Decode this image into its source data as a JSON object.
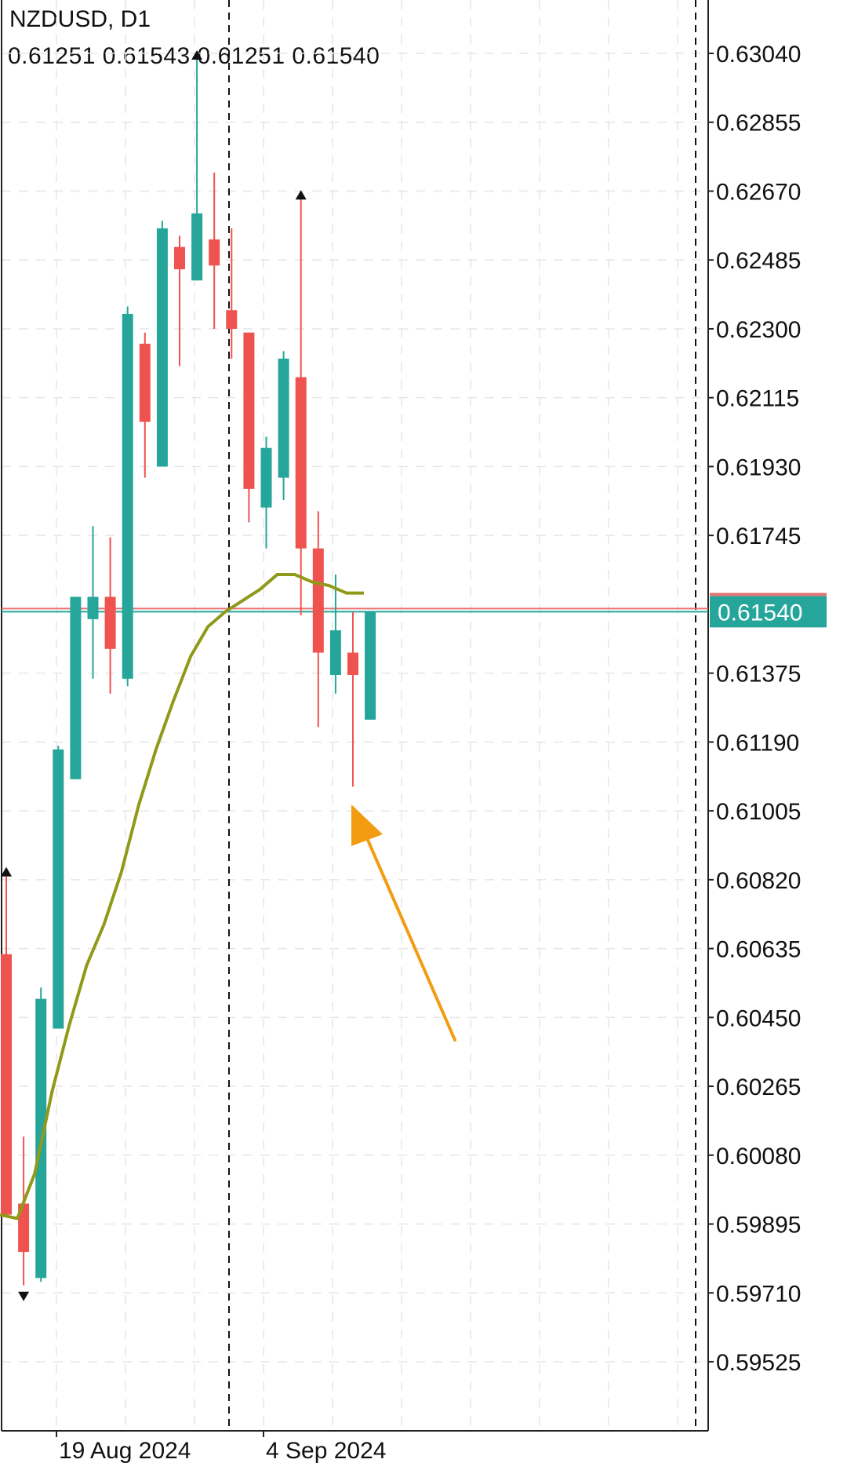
{
  "header": {
    "symbol": "NZDUSD, D1",
    "ohlc": "0.61251 0.61543 0.61251 0.61540"
  },
  "chart_data": {
    "type": "candlestick",
    "title": "NZDUSD, D1",
    "ylim": [
      0.5935,
      0.6317
    ],
    "y_ticks": [
      "0.63040",
      "0.62855",
      "0.62670",
      "0.62485",
      "0.62300",
      "0.62115",
      "0.61930",
      "0.61745",
      "0.61540",
      "0.61375",
      "0.61190",
      "0.61005",
      "0.60820",
      "0.60635",
      "0.60450",
      "0.60265",
      "0.60080",
      "0.59895",
      "0.59710",
      "0.59525"
    ],
    "x_labels": [
      "19 Aug 2024",
      "4 Sep 2024"
    ],
    "current_price_label": "0.61540",
    "grid": true,
    "colors": {
      "bull": "#26a69a",
      "bear": "#ef5350",
      "moving_average": "#8f9a1a",
      "annotation_arrow": "#f39c12",
      "price_label_bg": "#26a69a",
      "bid_line": "#26a69a",
      "ask_line": "#e57373"
    },
    "candles": [
      {
        "open": 0.6062,
        "high": 0.6085,
        "low": 0.5992,
        "close": 0.5992
      },
      {
        "open": 0.5995,
        "high": 0.6013,
        "low": 0.5973,
        "close": 0.5982
      },
      {
        "open": 0.5975,
        "high": 0.6053,
        "low": 0.5974,
        "close": 0.605
      },
      {
        "open": 0.6042,
        "high": 0.6118,
        "low": 0.6042,
        "close": 0.6117
      },
      {
        "open": 0.6109,
        "high": 0.6158,
        "low": 0.6109,
        "close": 0.6158
      },
      {
        "open": 0.6152,
        "high": 0.6177,
        "low": 0.6136,
        "close": 0.6158
      },
      {
        "open": 0.6158,
        "high": 0.6174,
        "low": 0.6132,
        "close": 0.6144
      },
      {
        "open": 0.6136,
        "high": 0.6236,
        "low": 0.6134,
        "close": 0.6234
      },
      {
        "open": 0.6226,
        "high": 0.6229,
        "low": 0.619,
        "close": 0.6205
      },
      {
        "open": 0.6193,
        "high": 0.6259,
        "low": 0.6193,
        "close": 0.6257
      },
      {
        "open": 0.6252,
        "high": 0.6255,
        "low": 0.622,
        "close": 0.6246
      },
      {
        "open": 0.6243,
        "high": 0.6304,
        "low": 0.6243,
        "close": 0.6261
      },
      {
        "open": 0.6254,
        "high": 0.6272,
        "low": 0.623,
        "close": 0.6247
      },
      {
        "open": 0.6235,
        "high": 0.6257,
        "low": 0.6222,
        "close": 0.623
      },
      {
        "open": 0.6229,
        "high": 0.6229,
        "low": 0.6178,
        "close": 0.6187
      },
      {
        "open": 0.6182,
        "high": 0.6201,
        "low": 0.6171,
        "close": 0.6198
      },
      {
        "open": 0.619,
        "high": 0.6224,
        "low": 0.6184,
        "close": 0.6222
      },
      {
        "open": 0.6217,
        "high": 0.6266,
        "low": 0.6153,
        "close": 0.6171
      },
      {
        "open": 0.6171,
        "high": 0.6181,
        "low": 0.6123,
        "close": 0.6143
      },
      {
        "open": 0.6137,
        "high": 0.6164,
        "low": 0.6132,
        "close": 0.6149
      },
      {
        "open": 0.6143,
        "high": 0.6154,
        "low": 0.6107,
        "close": 0.6137
      },
      {
        "open": 0.6125,
        "high": 0.6154,
        "low": 0.6125,
        "close": 0.6154
      }
    ],
    "moving_average": [
      0.5992,
      0.5991,
      0.6003,
      0.6025,
      0.6043,
      0.6059,
      0.607,
      0.6084,
      0.6102,
      0.6117,
      0.613,
      0.6142,
      0.615,
      0.6154,
      0.6157,
      0.616,
      0.6164,
      0.6164,
      0.6162,
      0.6161,
      0.6159,
      0.6159
    ]
  }
}
